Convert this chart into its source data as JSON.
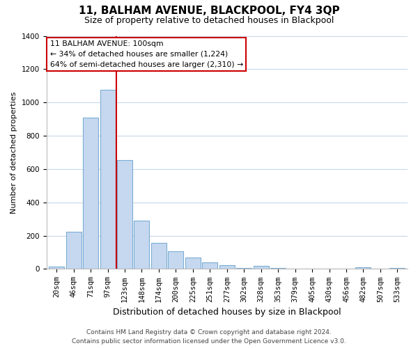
{
  "title": "11, BALHAM AVENUE, BLACKPOOL, FY4 3QP",
  "subtitle": "Size of property relative to detached houses in Blackpool",
  "xlabel": "Distribution of detached houses by size in Blackpool",
  "ylabel": "Number of detached properties",
  "bar_labels": [
    "20sqm",
    "46sqm",
    "71sqm",
    "97sqm",
    "123sqm",
    "148sqm",
    "174sqm",
    "200sqm",
    "225sqm",
    "251sqm",
    "277sqm",
    "302sqm",
    "328sqm",
    "353sqm",
    "379sqm",
    "405sqm",
    "430sqm",
    "456sqm",
    "482sqm",
    "507sqm",
    "533sqm"
  ],
  "bar_values": [
    15,
    225,
    910,
    1075,
    655,
    290,
    158,
    105,
    68,
    38,
    22,
    5,
    18,
    5,
    0,
    0,
    0,
    0,
    10,
    0,
    5
  ],
  "bar_color": "#c5d8f0",
  "bar_edge_color": "#7badd4",
  "annotation_title": "11 BALHAM AVENUE: 100sqm",
  "annotation_line1": "← 34% of detached houses are smaller (1,224)",
  "annotation_line2": "64% of semi-detached houses are larger (2,310) →",
  "annotation_box_edge": "#cc0000",
  "ylim": [
    0,
    1400
  ],
  "yticks": [
    0,
    200,
    400,
    600,
    800,
    1000,
    1200,
    1400
  ],
  "vline_x": 3.5,
  "footer1": "Contains HM Land Registry data © Crown copyright and database right 2024.",
  "footer2": "Contains public sector information licensed under the Open Government Licence v3.0.",
  "bg_color": "#ffffff",
  "grid_color": "#c8d8ec",
  "title_fontsize": 11,
  "subtitle_fontsize": 9,
  "ylabel_fontsize": 8,
  "xlabel_fontsize": 9,
  "tick_fontsize": 7.5,
  "footer_fontsize": 6.5
}
